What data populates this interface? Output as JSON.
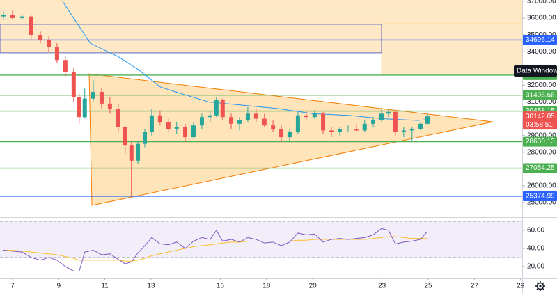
{
  "chart_data": [
    {
      "type": "candlestick",
      "xlim": [
        6.46,
        29.07
      ],
      "ylim": [
        24130,
        37080
      ],
      "yticks": [
        {
          "value": 25000,
          "label": "25000.00"
        },
        {
          "value": 26000,
          "label": "26000.00"
        },
        {
          "value": 28000,
          "label": "28000.00"
        },
        {
          "value": 29000,
          "label": "29000.00"
        },
        {
          "value": 31000,
          "label": "31000.00"
        },
        {
          "value": 32000,
          "label": "32000.00"
        },
        {
          "value": 34000,
          "label": "34000.00"
        },
        {
          "value": 35000,
          "label": "35000.00"
        },
        {
          "value": 36000,
          "label": "36000.00"
        },
        {
          "value": 37000,
          "label": "37000.00"
        }
      ],
      "up_color": "#26a69a",
      "down_color": "#ef5350",
      "candles": {
        "x": [
          6.61,
          7.0,
          7.42,
          7.81,
          8.21,
          8.57,
          8.93,
          9.29,
          9.65,
          9.89,
          10.13,
          10.5,
          10.86,
          11.22,
          11.58,
          11.88,
          12.15,
          12.43,
          12.73,
          13.03,
          13.39,
          13.75,
          14.11,
          14.48,
          14.84,
          15.2,
          15.56,
          15.83,
          16.1,
          16.47,
          16.83,
          17.19,
          17.55,
          17.91,
          18.28,
          18.64,
          19.0,
          19.36,
          19.72,
          20.08,
          20.45,
          20.81,
          21.17,
          21.53,
          21.89,
          22.25,
          22.62,
          22.98,
          23.28,
          23.58,
          23.94,
          24.3,
          24.67,
          24.97
        ],
        "open": [
          36100,
          36200,
          36000,
          36100,
          35000,
          34700,
          34300,
          33500,
          32800,
          31300,
          30100,
          31200,
          31600,
          30900,
          30600,
          29500,
          28400,
          27500,
          28500,
          29200,
          30200,
          29800,
          29400,
          29500,
          28900,
          29600,
          30100,
          30200,
          31100,
          30100,
          29700,
          29900,
          30300,
          30000,
          29600,
          29400,
          28900,
          29200,
          30200,
          30100,
          30300,
          29300,
          29200,
          29400,
          29400,
          29300,
          29700,
          29900,
          30300,
          30400,
          29200,
          29300,
          29400,
          29700
        ],
        "high": [
          36400,
          36500,
          36200,
          36200,
          35200,
          34900,
          34500,
          33700,
          33000,
          31500,
          31800,
          32300,
          31800,
          31300,
          30900,
          29600,
          28600,
          28700,
          29400,
          30600,
          30500,
          30000,
          29800,
          29700,
          29800,
          30300,
          30500,
          31300,
          31200,
          30300,
          30100,
          30700,
          30600,
          30300,
          29900,
          29600,
          29400,
          30400,
          30500,
          30500,
          30400,
          29500,
          29500,
          29600,
          29700,
          29900,
          30100,
          30600,
          30600,
          30500,
          29500,
          29500,
          29800,
          30300
        ],
        "low": [
          35900,
          35900,
          35900,
          34700,
          34500,
          34000,
          33300,
          32500,
          31000,
          29700,
          30000,
          31000,
          30600,
          30300,
          29200,
          27900,
          25400,
          27300,
          28300,
          29000,
          29600,
          29200,
          29100,
          28600,
          28800,
          29400,
          29800,
          30100,
          29900,
          29400,
          29300,
          29800,
          29800,
          29500,
          29200,
          28600,
          28600,
          29100,
          29900,
          30000,
          29100,
          28900,
          29000,
          29200,
          29200,
          29200,
          29500,
          29800,
          30100,
          29000,
          28900,
          28700,
          29300,
          29600
        ],
        "close": [
          36200,
          36000,
          36100,
          35000,
          34700,
          34300,
          33500,
          32800,
          31300,
          30100,
          31200,
          31600,
          30900,
          30600,
          29500,
          28400,
          27500,
          28500,
          29200,
          30200,
          29800,
          29400,
          29500,
          28900,
          29600,
          30100,
          30200,
          31100,
          30100,
          29700,
          29900,
          30300,
          30000,
          29600,
          29400,
          28900,
          29200,
          30200,
          30100,
          30300,
          29300,
          29200,
          29400,
          29400,
          29300,
          29700,
          29900,
          30300,
          30400,
          29200,
          29300,
          29400,
          29700,
          30142.05
        ]
      },
      "ma": {
        "color": "#2196f3",
        "x": [
          9.17,
          10.37,
          11.58,
          12.48,
          13.39,
          14.3,
          15.5,
          17.01,
          18.52,
          20.02,
          21.53,
          23.04,
          24.55,
          24.97
        ],
        "values": [
          37000,
          34500,
          33700,
          32900,
          31900,
          31500,
          31000,
          30800,
          30600,
          30300,
          30200,
          30000,
          29900,
          29950
        ]
      },
      "zones": [
        {
          "x": [
            6.46,
            29.07
          ],
          "y": [
            35700,
            37080
          ],
          "fill": "#ffe0b2",
          "stroke": "#ffe0b2"
        },
        {
          "x": [
            22.98,
            29.07
          ],
          "y": [
            32650,
            35700
          ],
          "fill": "#ffe0b2",
          "stroke": "#ffe0b2"
        },
        {
          "x": [
            6.46,
            22.98
          ],
          "y": [
            33930,
            35630
          ],
          "fill": "#ffe0b2",
          "stroke": "#5c6bc0"
        }
      ],
      "triangle": {
        "x": [
          10.32,
          10.44,
          27.8
        ],
        "y": [
          32680,
          24836,
          29816
        ],
        "fill": "#ffcc80",
        "stroke": "#f57c00"
      },
      "levels": [
        {
          "value": 34696.14,
          "color": "#2962ff"
        },
        {
          "value": 32600,
          "color": "#4caf50"
        },
        {
          "value": 31403.68,
          "color": "#4caf50"
        },
        {
          "value": 30458.15,
          "color": "#4caf50"
        },
        {
          "value": 28630.13,
          "color": "#4caf50"
        },
        {
          "value": 27054.25,
          "color": "#4caf50"
        },
        {
          "value": 25374.99,
          "color": "#2962ff"
        }
      ],
      "current": {
        "value": 30142.05,
        "countdown": "03:58:51",
        "color": "#ef5350"
      }
    },
    {
      "type": "line",
      "xlim": [
        6.46,
        29.07
      ],
      "ylim": [
        6.9,
        73.8
      ],
      "xticks": [
        7,
        9,
        11,
        13,
        16,
        18,
        20,
        23,
        25,
        27,
        29
      ],
      "yticks": [
        {
          "value": 20,
          "label": "20.00"
        },
        {
          "value": 40,
          "label": "40.00"
        },
        {
          "value": 60,
          "label": "60.00"
        }
      ],
      "band": [
        30,
        70
      ],
      "x": [
        6.61,
        7.0,
        7.42,
        7.81,
        8.21,
        8.57,
        8.93,
        9.29,
        9.65,
        9.89,
        10.13,
        10.5,
        10.86,
        11.22,
        11.58,
        11.88,
        12.15,
        12.43,
        12.73,
        13.03,
        13.39,
        13.75,
        14.11,
        14.48,
        14.84,
        15.2,
        15.56,
        15.83,
        16.1,
        16.47,
        16.83,
        17.19,
        17.55,
        17.91,
        18.28,
        18.64,
        19.0,
        19.36,
        19.72,
        20.08,
        20.45,
        20.81,
        21.17,
        21.53,
        21.89,
        22.25,
        22.62,
        22.98,
        23.28,
        23.58,
        23.94,
        24.3,
        24.67,
        24.97
      ],
      "series": [
        {
          "color": "#7e57c2",
          "values": [
            38,
            37,
            36,
            30,
            27,
            30,
            27,
            20,
            15,
            15,
            36,
            38,
            33,
            34,
            28,
            23,
            25,
            35,
            43,
            52,
            45,
            44,
            47,
            40,
            48,
            52,
            50,
            60,
            48,
            50,
            47,
            52,
            50,
            46,
            47,
            43,
            47,
            57,
            55,
            56,
            47,
            50,
            51,
            50,
            51,
            52,
            55,
            62,
            60,
            45,
            47,
            48,
            50,
            59
          ]
        },
        {
          "color": "#fbc02d",
          "values": [
            38,
            38,
            37,
            36,
            35,
            34,
            33,
            31,
            29,
            27,
            27,
            27,
            27,
            27,
            27,
            26,
            26,
            27,
            29,
            32,
            34,
            36,
            38,
            40,
            42,
            43,
            44,
            45,
            46,
            47,
            47,
            48,
            48,
            48,
            48,
            48,
            48,
            49,
            49,
            50,
            50,
            50,
            50,
            50,
            50,
            50,
            51,
            52,
            53,
            53,
            52,
            51,
            51,
            51
          ]
        }
      ]
    },
    {
      "ui": {
        "data_window": "Data Window"
      }
    }
  ]
}
